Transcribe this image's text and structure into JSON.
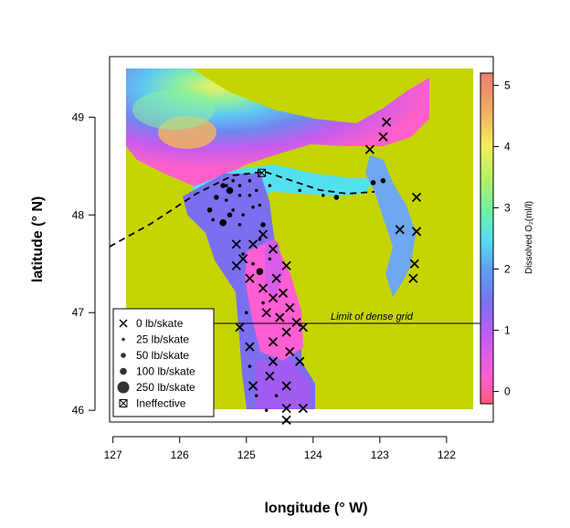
{
  "chart_data": {
    "type": "scatter",
    "title": "",
    "xlabel": "longitude (° W)",
    "ylabel": "latitude (° N)",
    "xlim": [
      127.05,
      121.3
    ],
    "ylim": [
      45.88,
      49.62
    ],
    "x_ticks": [
      {
        "value": 127,
        "label": "127"
      },
      {
        "value": 126,
        "label": "126"
      },
      {
        "value": 125,
        "label": "125"
      },
      {
        "value": 124,
        "label": "124"
      },
      {
        "value": 123,
        "label": "123"
      },
      {
        "value": 122,
        "label": "122"
      }
    ],
    "y_ticks": [
      {
        "value": 46,
        "label": "46"
      },
      {
        "value": 47,
        "label": "47"
      },
      {
        "value": 48,
        "label": "48"
      },
      {
        "value": 49,
        "label": "49"
      }
    ],
    "annotation": {
      "text": "Limit of dense grid",
      "lat": 46.89
    },
    "colorbar": {
      "label": "Dissolved O₂(ml/l)",
      "min": -0.2,
      "max": 5.2,
      "ticks": [
        {
          "value": 0,
          "label": "0"
        },
        {
          "value": 1,
          "label": "1"
        },
        {
          "value": 2,
          "label": "2"
        },
        {
          "value": 3,
          "label": "3"
        },
        {
          "value": 4,
          "label": "4"
        },
        {
          "value": 5,
          "label": "5"
        }
      ],
      "colors": [
        "#ff5a7a",
        "#ff5fd2",
        "#c65cf2",
        "#7b6ff0",
        "#5e9cf2",
        "#55e0f0",
        "#6cf2a8",
        "#b4f064",
        "#f0f05a",
        "#f2b060",
        "#f07a74"
      ]
    },
    "legend": {
      "position": "bottom-left",
      "items": [
        {
          "label": "0 lb/skate",
          "symbol": "x"
        },
        {
          "label": "25 lb/skate",
          "symbol": "dot",
          "size": 1
        },
        {
          "label": "50 lb/skate",
          "symbol": "dot",
          "size": 2
        },
        {
          "label": "100 lb/skate",
          "symbol": "dot",
          "size": 3
        },
        {
          "label": "250 lb/skate",
          "symbol": "dot",
          "size": 4
        },
        {
          "label": "Ineffective",
          "symbol": "box-x"
        }
      ]
    },
    "series": [
      {
        "symbol": "x",
        "points": [
          [
            123.15,
            48.67
          ],
          [
            122.95,
            48.8
          ],
          [
            122.9,
            48.95
          ],
          [
            122.7,
            47.85
          ],
          [
            122.45,
            47.83
          ],
          [
            122.45,
            48.18
          ],
          [
            122.48,
            47.5
          ],
          [
            122.5,
            47.35
          ],
          [
            125.15,
            47.7
          ],
          [
            125.05,
            47.55
          ],
          [
            124.9,
            47.7
          ],
          [
            124.75,
            47.8
          ],
          [
            124.6,
            47.65
          ],
          [
            125.15,
            47.48
          ],
          [
            124.95,
            47.35
          ],
          [
            124.4,
            47.48
          ],
          [
            124.55,
            47.35
          ],
          [
            124.75,
            47.25
          ],
          [
            124.6,
            47.15
          ],
          [
            124.45,
            47.2
          ],
          [
            124.35,
            47.05
          ],
          [
            124.7,
            47.0
          ],
          [
            124.5,
            46.95
          ],
          [
            124.25,
            46.9
          ],
          [
            124.4,
            46.8
          ],
          [
            124.6,
            46.7
          ],
          [
            125.1,
            46.85
          ],
          [
            124.15,
            46.85
          ],
          [
            124.95,
            46.65
          ],
          [
            124.6,
            46.5
          ],
          [
            124.35,
            46.6
          ],
          [
            124.2,
            46.5
          ],
          [
            124.65,
            46.35
          ],
          [
            124.9,
            46.25
          ],
          [
            124.4,
            46.25
          ],
          [
            124.4,
            46.02
          ],
          [
            124.15,
            46.02
          ],
          [
            124.4,
            45.9
          ]
        ]
      },
      {
        "symbol": "dot",
        "size": 1,
        "points": [
          [
            125.2,
            48.35
          ],
          [
            125.1,
            48.3
          ],
          [
            124.95,
            48.35
          ],
          [
            125.3,
            48.15
          ],
          [
            125.1,
            48.2
          ],
          [
            124.95,
            48.2
          ],
          [
            124.85,
            48.25
          ],
          [
            125.2,
            48.05
          ],
          [
            125.05,
            48.0
          ],
          [
            124.9,
            48.08
          ],
          [
            125.5,
            47.95
          ],
          [
            125.1,
            47.9
          ],
          [
            124.8,
            47.75
          ],
          [
            125.05,
            47.6
          ],
          [
            124.9,
            47.5
          ],
          [
            124.65,
            47.55
          ],
          [
            124.75,
            47.1
          ],
          [
            125.0,
            47.0
          ],
          [
            124.95,
            46.45
          ],
          [
            124.85,
            46.15
          ],
          [
            124.55,
            46.15
          ],
          [
            124.7,
            46.0
          ],
          [
            124.8,
            48.1
          ],
          [
            125.3,
            48.3
          ],
          [
            124.65,
            48.3
          ],
          [
            124.2,
            48.25
          ],
          [
            123.85,
            48.2
          ]
        ]
      },
      {
        "symbol": "dot",
        "size": 2,
        "points": [
          [
            125.35,
            48.3
          ],
          [
            125.45,
            48.18
          ],
          [
            125.55,
            48.05
          ],
          [
            125.25,
            48.0
          ],
          [
            124.75,
            47.9
          ],
          [
            123.1,
            48.33
          ],
          [
            123.65,
            48.18
          ],
          [
            122.95,
            48.35
          ]
        ]
      },
      {
        "symbol": "dot",
        "size": 3,
        "points": [
          [
            125.25,
            48.25
          ],
          [
            125.35,
            47.92
          ],
          [
            124.8,
            47.42
          ]
        ]
      },
      {
        "symbol": "box-x",
        "points": [
          [
            124.77,
            48.43
          ]
        ]
      }
    ]
  }
}
